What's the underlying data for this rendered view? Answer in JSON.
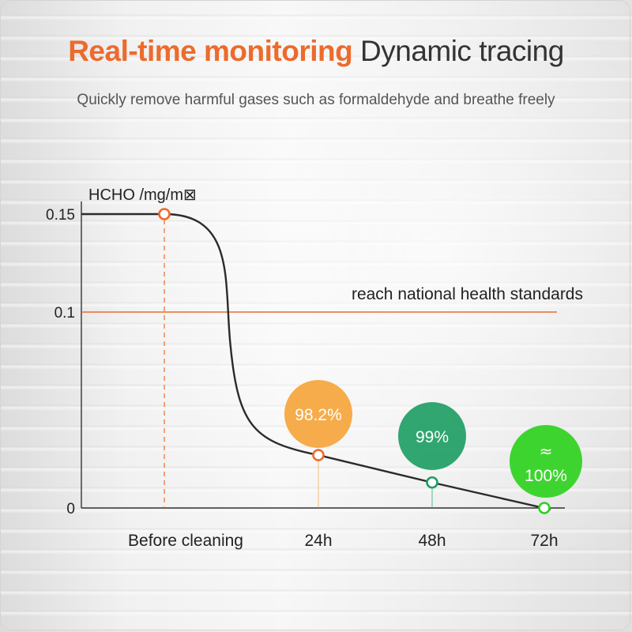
{
  "header": {
    "title_highlight": "Real-time monitoring",
    "title_rest": "Dynamic tracing",
    "subtitle": "Quickly remove harmful gases such as formaldehyde and breathe freely"
  },
  "colors": {
    "accent": "#ec6b2c",
    "curve": "#2b2b2b",
    "point_orange": "#f5a53c",
    "point_green": "#1f9e64",
    "point_bright_green": "#2fd11f"
  },
  "chart_data": {
    "type": "line",
    "ylabel": "HCHO /mg/m⊠",
    "xlabel": "",
    "yticks": [
      {
        "value": 0.15,
        "label": "0.15"
      },
      {
        "value": 0.1,
        "label": "0.1"
      },
      {
        "value": 0,
        "label": "0"
      }
    ],
    "ylim": [
      0,
      0.15
    ],
    "categories": [
      "Before cleaning",
      "24h",
      "48h",
      "72h"
    ],
    "values": [
      0.15,
      0.027,
      0.013,
      0
    ],
    "reference_line": {
      "value": 0.1,
      "label": "reach national health standards"
    },
    "point_labels": [
      {
        "category": "24h",
        "text": "98.2%",
        "color": "#f5a53c"
      },
      {
        "category": "48h",
        "text": "99%",
        "color": "#1f9e64"
      },
      {
        "category": "72h",
        "text": "≈\n100%",
        "color": "#2fd11f"
      }
    ],
    "grid": false
  }
}
